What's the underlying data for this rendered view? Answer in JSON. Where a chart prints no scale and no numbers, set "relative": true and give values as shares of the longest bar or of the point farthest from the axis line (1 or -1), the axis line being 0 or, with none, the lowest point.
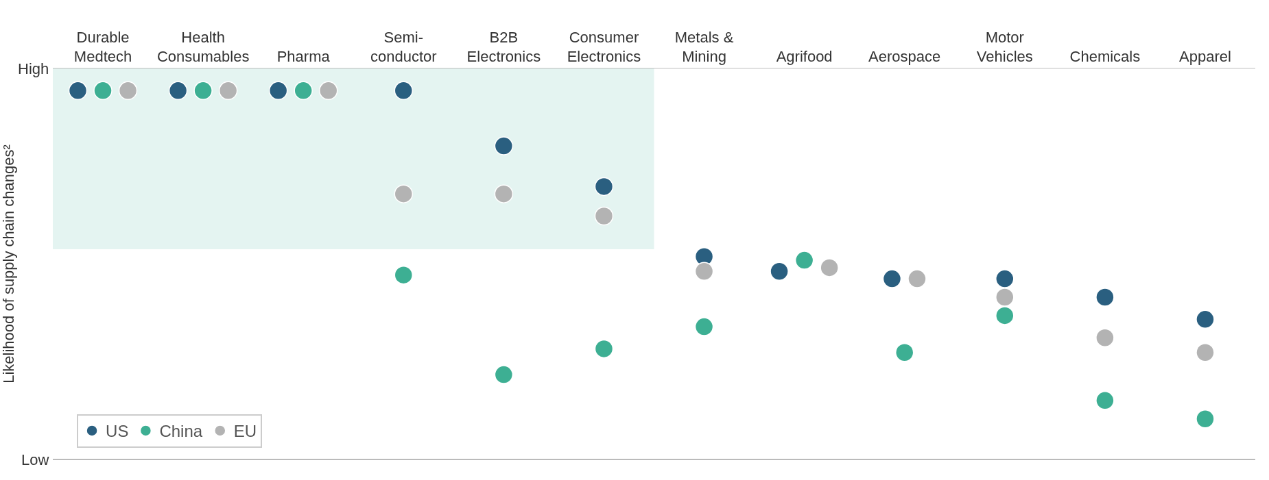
{
  "chart_data": {
    "type": "scatter",
    "categories": [
      "Durable\nMedtech",
      "Health\nConsumables",
      "Pharma",
      "Semi-\nconductor",
      "B2B\nElectronics",
      "Consumer\nElectronics",
      "Metals &\nMining",
      "Agrifood",
      "Aerospace",
      "Motor\nVehicles",
      "Chemicals",
      "Apparel"
    ],
    "ylabel": "Likelihood of supply chain changes²",
    "relative": true,
    "annotations": [
      "High",
      "Low"
    ],
    "series": [
      {
        "name": "US",
        "color": "#2a5f80",
        "values": [
          1,
          1,
          1,
          1,
          0.85,
          0.74,
          0.55,
          0.51,
          0.49,
          0.49,
          0.44,
          0.38
        ]
      },
      {
        "name": "China",
        "color": "#3daf93",
        "values": [
          1,
          1,
          1,
          0.5,
          0.23,
          0.3,
          0.36,
          0.54,
          0.29,
          0.39,
          0.16,
          0.11
        ]
      },
      {
        "name": "EU",
        "color": "#b3b3b3",
        "values": [
          1,
          1,
          1,
          0.72,
          0.72,
          0.66,
          0.51,
          0.52,
          0.49,
          0.44,
          0.33,
          0.29
        ]
      }
    ],
    "bands": [
      {
        "axis": "y",
        "from": 0.57,
        "to": 1.06,
        "color": "#e4f4f1"
      }
    ],
    "marker": "circle",
    "legend": "bottom left",
    "grid": false
  }
}
